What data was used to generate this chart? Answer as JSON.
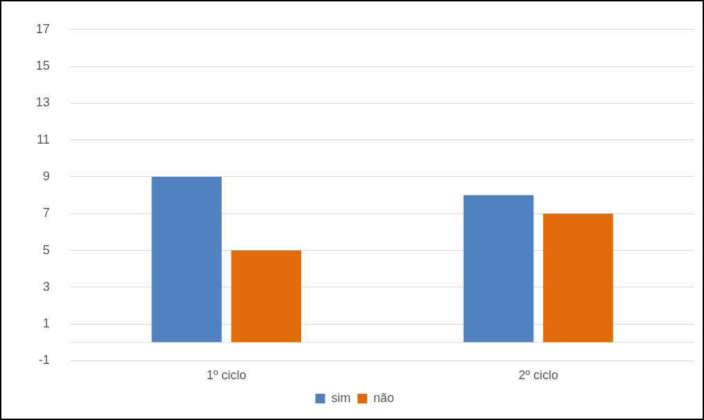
{
  "chart_data": {
    "type": "bar",
    "categories": [
      "1º ciclo",
      "2º ciclo"
    ],
    "series": [
      {
        "name": "sim",
        "color": "#4f81bd",
        "values": [
          9,
          8
        ]
      },
      {
        "name": "não",
        "color": "#e36c0a",
        "values": [
          5,
          7
        ]
      }
    ],
    "ylim": [
      -1,
      17
    ],
    "yticks": [
      -1,
      1,
      3,
      5,
      7,
      9,
      11,
      13,
      15,
      17
    ],
    "grid": "y",
    "legend": "bottom"
  }
}
